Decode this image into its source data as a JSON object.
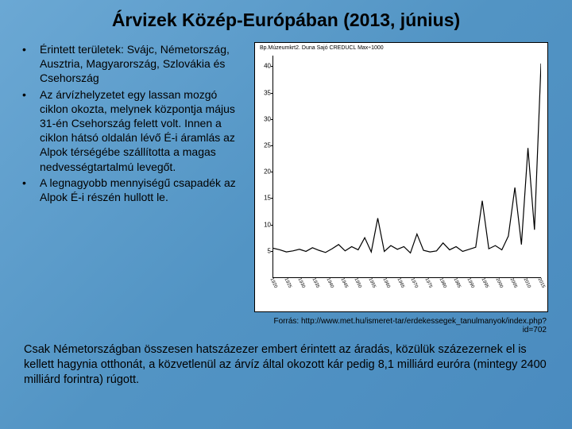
{
  "title": "Árvizek Közép-Európában (2013, június)",
  "bullets": [
    "Érintett területek: Svájc, Németország, Ausztria, Magyarország, Szlovákia és Csehország",
    "Az árvízhelyzetet egy lassan mozgó ciklon okozta, melynek központja május 31-én Csehország felett volt. Innen a ciklon hátsó oldalán lévő É-i áramlás az Alpok térségébe szállította a magas nedvességtartalmú levegőt.",
    "A legnagyobb mennyiségű csapadék az Alpok É-i részén hullott le."
  ],
  "source": "Forrás: http://www.met.hu/ismeret-tar/erdekessegek_tanulmanyok/index.php?id=702",
  "bottom": "Csak Németországban összesen hatszázezer embert érintett az áradás, közülük százezernek el is kellett hagynia otthonát, a közvetlenül az árvíz által okozott kár pedig 8,1 milliárd euróra (mintegy 2400 milliárd forintra) rúgott.",
  "chart": {
    "type": "line",
    "caption": "Bp.Múzeumkrt2. Duna Sajó CREDUCL Max÷1000",
    "ytick_values": [
      5,
      10,
      15,
      20,
      25,
      30,
      35,
      40
    ],
    "ymin": 0,
    "ymax": 42,
    "background_color": "#ffffff",
    "line_color": "#000000",
    "line_width": 1.2,
    "x_labels": [
      "1920",
      "1925",
      "1930",
      "1935",
      "1940",
      "1945",
      "1950",
      "1955",
      "1960",
      "1965",
      "1970",
      "1975",
      "1980",
      "1985",
      "1990",
      "1995",
      "2000",
      "2005",
      "2010",
      "2015"
    ],
    "values": [
      5.5,
      5.2,
      4.8,
      5.0,
      5.3,
      4.9,
      5.6,
      5.1,
      4.7,
      5.4,
      6.2,
      5.0,
      5.8,
      5.2,
      7.5,
      4.8,
      11.2,
      4.9,
      6.0,
      5.3,
      5.8,
      4.6,
      8.2,
      5.1,
      4.8,
      5.0,
      6.5,
      5.2,
      5.8,
      4.9,
      5.3,
      5.7,
      14.5,
      5.4,
      6.0,
      5.2,
      7.8,
      17.0,
      6.2,
      24.5,
      9.0,
      40.5
    ]
  }
}
